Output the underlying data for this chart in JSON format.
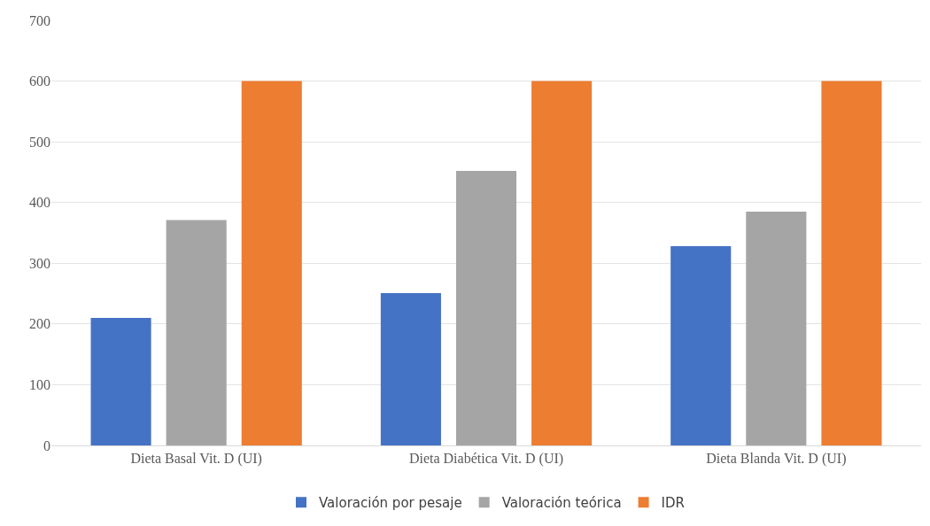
{
  "chart_data": {
    "type": "bar",
    "categories": [
      "Dieta Basal Vit. D (UI)",
      "Dieta Diabética Vit. D (UI)",
      "Dieta Blanda Vit. D (UI)"
    ],
    "series": [
      {
        "name": "Valoración por pesaje",
        "color": "#4472c4",
        "values": [
          210,
          251,
          328
        ]
      },
      {
        "name": "Valoración teórica",
        "color": "#a5a5a5",
        "values": [
          371,
          452,
          385
        ]
      },
      {
        "name": "IDR",
        "color": "#ed7d31",
        "values": [
          600,
          600,
          600
        ]
      }
    ],
    "ylim": [
      0,
      700
    ],
    "yticks": [
      0,
      100,
      200,
      300,
      400,
      500,
      600,
      700
    ],
    "grid": "y",
    "legend": "bottom"
  }
}
